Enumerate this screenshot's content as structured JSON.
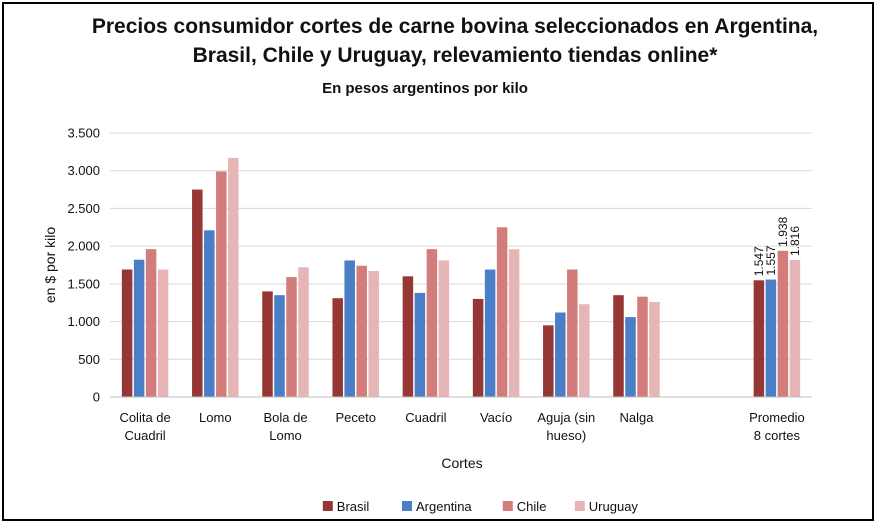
{
  "chart_data": {
    "type": "bar",
    "title": "Precios consumidor cortes de carne bovina seleccionados en Argentina, Brasil, Chile y Uruguay, relevamiento tiendas online*",
    "subtitle": "En pesos argentinos por kilo",
    "xlabel": "Cortes",
    "ylabel": "en $ por kilo",
    "ylim": [
      0,
      3500
    ],
    "yticks": [
      0,
      500,
      1000,
      1500,
      2000,
      2500,
      3000,
      3500
    ],
    "ytick_labels": [
      "0",
      "500",
      "1.000",
      "1.500",
      "2.000",
      "2.500",
      "3.000",
      "3.500"
    ],
    "grid": true,
    "legend_position": "bottom",
    "categories": [
      [
        "Colita de",
        "Cuadril"
      ],
      [
        "Lomo"
      ],
      [
        "Bola de",
        "Lomo"
      ],
      [
        "Peceto"
      ],
      [
        "Cuadril"
      ],
      [
        "Vacío"
      ],
      [
        "Aguja (sin",
        "hueso)"
      ],
      [
        "Nalga"
      ],
      [],
      [
        "Promedio",
        "8 cortes"
      ]
    ],
    "series": [
      {
        "name": "Brasil",
        "color": "#953735",
        "values": [
          1690,
          2750,
          1400,
          1310,
          1600,
          1300,
          950,
          1350,
          null,
          1547
        ]
      },
      {
        "name": "Argentina",
        "color": "#4a7ec6",
        "values": [
          1820,
          2210,
          1350,
          1810,
          1380,
          1690,
          1120,
          1060,
          null,
          1557
        ]
      },
      {
        "name": "Chile",
        "color": "#d37c7c",
        "values": [
          1960,
          2990,
          1590,
          1740,
          1960,
          2250,
          1690,
          1330,
          null,
          1938
        ]
      },
      {
        "name": "Uruguay",
        "color": "#e6b6b6",
        "values": [
          1690,
          3170,
          1720,
          1670,
          1810,
          1960,
          1230,
          1260,
          null,
          1816
        ]
      }
    ],
    "data_labels": [
      {
        "category_index": 9,
        "series_index": 0,
        "text": "1.547"
      },
      {
        "category_index": 9,
        "series_index": 1,
        "text": "1.557"
      },
      {
        "category_index": 9,
        "series_index": 2,
        "text": "1.938"
      },
      {
        "category_index": 9,
        "series_index": 3,
        "text": "1.816"
      }
    ]
  }
}
